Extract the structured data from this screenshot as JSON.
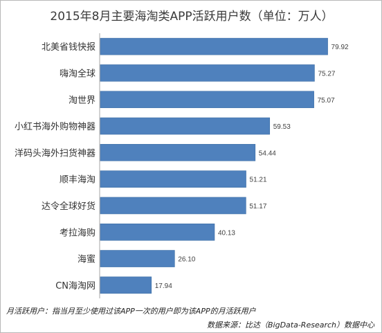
{
  "chart_data": {
    "type": "bar",
    "orientation": "horizontal",
    "title": "2015年8月主要海淘类APP活跃用户数（单位：万人）",
    "categories": [
      "北美省钱快报",
      "嗨淘全球",
      "淘世界",
      "小红书海外购物神器",
      "洋码头海外扫货神器",
      "顺丰海淘",
      "达令全球好货",
      "考拉海购",
      "海蜜",
      "CN海淘网"
    ],
    "values": [
      79.92,
      75.27,
      75.07,
      59.53,
      54.44,
      51.21,
      51.17,
      40.13,
      26.1,
      17.94
    ],
    "value_labels": [
      "79.92",
      "75.27",
      "75.07",
      "59.53",
      "54.44",
      "51.21",
      "51.17",
      "40.13",
      "26.10",
      "17.94"
    ],
    "xlim": [
      0,
      90
    ],
    "bar_color": "#4f81bd",
    "grid": false,
    "legend": "none"
  },
  "footnote": "月活跃用户：指当月至少使用过该APP一次的用户即为该APP的月活跃用户",
  "source": "数据来源：比达（BigData-Research）数据中心"
}
